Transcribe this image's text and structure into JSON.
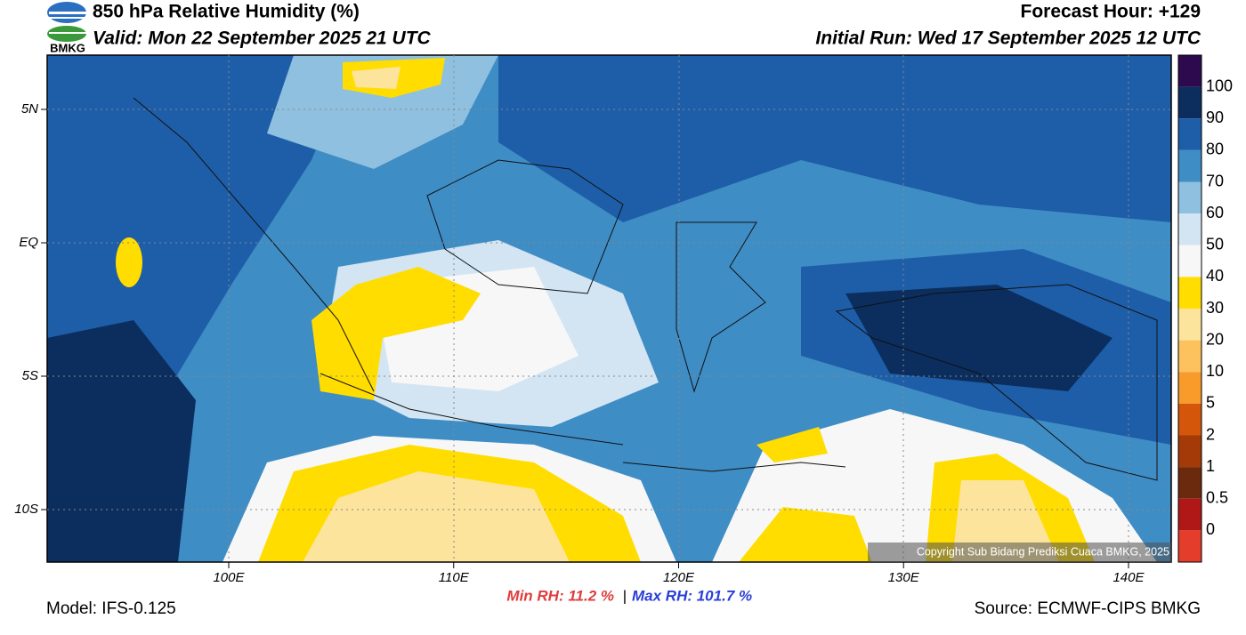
{
  "header": {
    "title": "850 hPa Relative Humidity (%)",
    "valid": "Valid: Mon 22 September 2025 21 UTC",
    "forecast_hour": "Forecast Hour: +129",
    "initial_run": "Initial Run: Wed 17 September 2025 12 UTC",
    "logo": "BMKG"
  },
  "map": {
    "lat_labels": [
      "5N",
      "EQ",
      "5S",
      "10S"
    ],
    "lon_labels": [
      "100E",
      "110E",
      "120E",
      "130E",
      "140E"
    ],
    "copyright": "Copyright Sub Bidang Prediksi Cuaca BMKG, 2025"
  },
  "colorbar": {
    "labels": [
      "100",
      "90",
      "80",
      "70",
      "60",
      "50",
      "40",
      "30",
      "20",
      "10",
      "5",
      "2",
      "1",
      "0.5",
      "0"
    ],
    "colors": [
      "#2d0a4e",
      "#0b2e5f",
      "#1e5ea8",
      "#3f8dc5",
      "#8fc0e0",
      "#d3e5f3",
      "#f7f7f7",
      "#ffdd00",
      "#fde49c",
      "#fdc25e",
      "#f99b2b",
      "#d4560b",
      "#a33a08",
      "#6b2a0d",
      "#b01818",
      "#e43d2c"
    ]
  },
  "footer": {
    "model": "Model: IFS-0.125",
    "min_rh": "Min RH:  11.2 %",
    "separator": "|",
    "max_rh": "Max RH: 101.7 %",
    "source": "Source: ECMWF-CIPS BMKG"
  }
}
